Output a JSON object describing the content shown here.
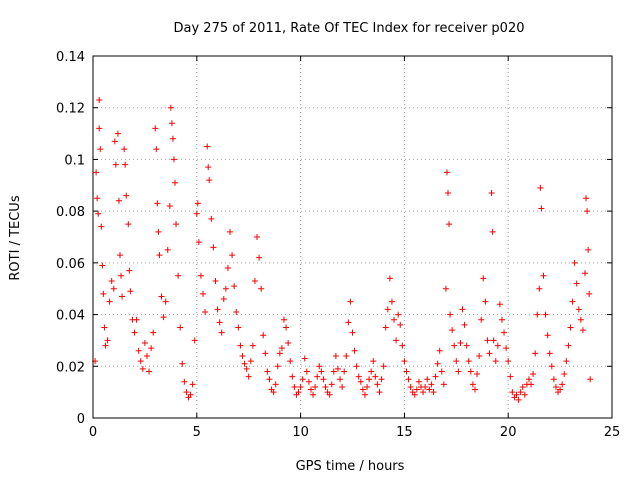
{
  "chart_data": {
    "type": "scatter",
    "title": "Day 275 of 2011, Rate Of TEC Index for receiver p020",
    "xlabel": "GPS time / hours",
    "ylabel": "ROTI / TECUs",
    "xlim": [
      0,
      25
    ],
    "ylim": [
      0,
      0.14
    ],
    "xticks": [
      "0",
      "5",
      "10",
      "15",
      "20",
      "25"
    ],
    "yticks": [
      "0",
      "0.02",
      "0.04",
      "0.06",
      "0.08",
      "0.1",
      "0.12",
      "0.14"
    ],
    "grid": true,
    "marker": "+",
    "color": "#ff0000",
    "series": [
      {
        "points": [
          [
            0.1,
            0.022
          ],
          [
            0.15,
            0.095
          ],
          [
            0.2,
            0.085
          ],
          [
            0.25,
            0.079
          ],
          [
            0.3,
            0.112
          ],
          [
            0.3,
            0.123
          ],
          [
            0.35,
            0.104
          ],
          [
            0.4,
            0.074
          ],
          [
            0.45,
            0.059
          ],
          [
            0.5,
            0.048
          ],
          [
            0.55,
            0.035
          ],
          [
            0.6,
            0.028
          ],
          [
            0.7,
            0.03
          ],
          [
            0.8,
            0.045
          ],
          [
            0.9,
            0.053
          ],
          [
            1.0,
            0.05
          ],
          [
            1.05,
            0.107
          ],
          [
            1.1,
            0.098
          ],
          [
            1.2,
            0.11
          ],
          [
            1.25,
            0.084
          ],
          [
            1.3,
            0.063
          ],
          [
            1.35,
            0.055
          ],
          [
            1.4,
            0.047
          ],
          [
            1.5,
            0.104
          ],
          [
            1.55,
            0.098
          ],
          [
            1.6,
            0.086
          ],
          [
            1.7,
            0.075
          ],
          [
            1.75,
            0.057
          ],
          [
            1.8,
            0.049
          ],
          [
            1.9,
            0.038
          ],
          [
            2.0,
            0.033
          ],
          [
            2.1,
            0.038
          ],
          [
            2.2,
            0.026
          ],
          [
            2.3,
            0.022
          ],
          [
            2.4,
            0.019
          ],
          [
            2.5,
            0.029
          ],
          [
            2.6,
            0.024
          ],
          [
            2.7,
            0.018
          ],
          [
            2.8,
            0.027
          ],
          [
            2.9,
            0.033
          ],
          [
            3.0,
            0.112
          ],
          [
            3.05,
            0.104
          ],
          [
            3.1,
            0.083
          ],
          [
            3.15,
            0.072
          ],
          [
            3.2,
            0.063
          ],
          [
            3.3,
            0.047
          ],
          [
            3.4,
            0.039
          ],
          [
            3.5,
            0.045
          ],
          [
            3.6,
            0.065
          ],
          [
            3.7,
            0.082
          ],
          [
            3.75,
            0.12
          ],
          [
            3.8,
            0.114
          ],
          [
            3.85,
            0.108
          ],
          [
            3.9,
            0.1
          ],
          [
            3.95,
            0.091
          ],
          [
            4.0,
            0.075
          ],
          [
            4.1,
            0.055
          ],
          [
            4.2,
            0.035
          ],
          [
            4.3,
            0.021
          ],
          [
            4.4,
            0.014
          ],
          [
            4.5,
            0.01
          ],
          [
            4.6,
            0.008
          ],
          [
            4.7,
            0.009
          ],
          [
            4.8,
            0.013
          ],
          [
            4.9,
            0.03
          ],
          [
            5.0,
            0.079
          ],
          [
            5.05,
            0.083
          ],
          [
            5.1,
            0.068
          ],
          [
            5.2,
            0.055
          ],
          [
            5.3,
            0.048
          ],
          [
            5.4,
            0.041
          ],
          [
            5.5,
            0.105
          ],
          [
            5.55,
            0.097
          ],
          [
            5.6,
            0.092
          ],
          [
            5.7,
            0.077
          ],
          [
            5.8,
            0.066
          ],
          [
            5.9,
            0.053
          ],
          [
            6.0,
            0.042
          ],
          [
            6.1,
            0.037
          ],
          [
            6.2,
            0.033
          ],
          [
            6.3,
            0.046
          ],
          [
            6.4,
            0.05
          ],
          [
            6.5,
            0.058
          ],
          [
            6.6,
            0.072
          ],
          [
            6.7,
            0.063
          ],
          [
            6.8,
            0.051
          ],
          [
            6.9,
            0.041
          ],
          [
            7.0,
            0.035
          ],
          [
            7.1,
            0.028
          ],
          [
            7.2,
            0.024
          ],
          [
            7.3,
            0.021
          ],
          [
            7.4,
            0.019
          ],
          [
            7.5,
            0.016
          ],
          [
            7.6,
            0.022
          ],
          [
            7.7,
            0.028
          ],
          [
            7.8,
            0.053
          ],
          [
            7.9,
            0.07
          ],
          [
            8.0,
            0.062
          ],
          [
            8.1,
            0.05
          ],
          [
            8.2,
            0.032
          ],
          [
            8.3,
            0.025
          ],
          [
            8.4,
            0.018
          ],
          [
            8.5,
            0.015
          ],
          [
            8.6,
            0.011
          ],
          [
            8.7,
            0.01
          ],
          [
            8.8,
            0.013
          ],
          [
            8.9,
            0.02
          ],
          [
            9.0,
            0.025
          ],
          [
            9.1,
            0.027
          ],
          [
            9.2,
            0.038
          ],
          [
            9.3,
            0.035
          ],
          [
            9.4,
            0.029
          ],
          [
            9.5,
            0.022
          ],
          [
            9.6,
            0.016
          ],
          [
            9.7,
            0.012
          ],
          [
            9.8,
            0.009
          ],
          [
            9.9,
            0.01
          ],
          [
            10.0,
            0.012
          ],
          [
            10.1,
            0.015
          ],
          [
            10.2,
            0.023
          ],
          [
            10.3,
            0.018
          ],
          [
            10.4,
            0.014
          ],
          [
            10.5,
            0.011
          ],
          [
            10.6,
            0.009
          ],
          [
            10.7,
            0.012
          ],
          [
            10.8,
            0.016
          ],
          [
            10.9,
            0.02
          ],
          [
            11.0,
            0.018
          ],
          [
            11.1,
            0.015
          ],
          [
            11.2,
            0.012
          ],
          [
            11.3,
            0.01
          ],
          [
            11.4,
            0.009
          ],
          [
            11.5,
            0.013
          ],
          [
            11.6,
            0.018
          ],
          [
            11.7,
            0.024
          ],
          [
            11.8,
            0.019
          ],
          [
            11.9,
            0.015
          ],
          [
            12.0,
            0.012
          ],
          [
            12.1,
            0.018
          ],
          [
            12.2,
            0.024
          ],
          [
            12.3,
            0.037
          ],
          [
            12.4,
            0.045
          ],
          [
            12.5,
            0.033
          ],
          [
            12.6,
            0.026
          ],
          [
            12.7,
            0.02
          ],
          [
            12.8,
            0.016
          ],
          [
            12.9,
            0.014
          ],
          [
            13.0,
            0.011
          ],
          [
            13.1,
            0.009
          ],
          [
            13.2,
            0.012
          ],
          [
            13.3,
            0.015
          ],
          [
            13.4,
            0.018
          ],
          [
            13.5,
            0.022
          ],
          [
            13.6,
            0.016
          ],
          [
            13.7,
            0.013
          ],
          [
            13.8,
            0.01
          ],
          [
            13.9,
            0.015
          ],
          [
            14.0,
            0.02
          ],
          [
            14.1,
            0.035
          ],
          [
            14.2,
            0.042
          ],
          [
            14.3,
            0.054
          ],
          [
            14.4,
            0.045
          ],
          [
            14.5,
            0.038
          ],
          [
            14.6,
            0.03
          ],
          [
            14.7,
            0.04
          ],
          [
            14.8,
            0.036
          ],
          [
            14.9,
            0.028
          ],
          [
            15.0,
            0.022
          ],
          [
            15.1,
            0.018
          ],
          [
            15.2,
            0.015
          ],
          [
            15.3,
            0.012
          ],
          [
            15.4,
            0.01
          ],
          [
            15.5,
            0.009
          ],
          [
            15.6,
            0.011
          ],
          [
            15.7,
            0.014
          ],
          [
            15.8,
            0.012
          ],
          [
            15.9,
            0.01
          ],
          [
            16.0,
            0.012
          ],
          [
            16.1,
            0.015
          ],
          [
            16.2,
            0.011
          ],
          [
            16.3,
            0.013
          ],
          [
            16.4,
            0.01
          ],
          [
            16.5,
            0.016
          ],
          [
            16.6,
            0.021
          ],
          [
            16.7,
            0.026
          ],
          [
            16.8,
            0.018
          ],
          [
            16.9,
            0.013
          ],
          [
            17.0,
            0.05
          ],
          [
            17.05,
            0.095
          ],
          [
            17.1,
            0.087
          ],
          [
            17.15,
            0.075
          ],
          [
            17.2,
            0.04
          ],
          [
            17.3,
            0.034
          ],
          [
            17.4,
            0.028
          ],
          [
            17.5,
            0.022
          ],
          [
            17.6,
            0.018
          ],
          [
            17.7,
            0.029
          ],
          [
            17.8,
            0.042
          ],
          [
            17.9,
            0.036
          ],
          [
            18.0,
            0.028
          ],
          [
            18.1,
            0.022
          ],
          [
            18.2,
            0.018
          ],
          [
            18.3,
            0.013
          ],
          [
            18.4,
            0.011
          ],
          [
            18.5,
            0.017
          ],
          [
            18.6,
            0.024
          ],
          [
            18.7,
            0.038
          ],
          [
            18.8,
            0.054
          ],
          [
            18.9,
            0.045
          ],
          [
            19.0,
            0.03
          ],
          [
            19.1,
            0.025
          ],
          [
            19.2,
            0.087
          ],
          [
            19.25,
            0.072
          ],
          [
            19.3,
            0.03
          ],
          [
            19.4,
            0.022
          ],
          [
            19.5,
            0.028
          ],
          [
            19.6,
            0.044
          ],
          [
            19.7,
            0.038
          ],
          [
            19.8,
            0.033
          ],
          [
            19.9,
            0.027
          ],
          [
            20.0,
            0.022
          ],
          [
            20.1,
            0.016
          ],
          [
            20.2,
            0.01
          ],
          [
            20.3,
            0.008
          ],
          [
            20.4,
            0.009
          ],
          [
            20.5,
            0.007
          ],
          [
            20.6,
            0.01
          ],
          [
            20.7,
            0.012
          ],
          [
            20.8,
            0.009
          ],
          [
            20.9,
            0.013
          ],
          [
            21.0,
            0.015
          ],
          [
            21.1,
            0.013
          ],
          [
            21.2,
            0.017
          ],
          [
            21.3,
            0.025
          ],
          [
            21.4,
            0.04
          ],
          [
            21.5,
            0.05
          ],
          [
            21.55,
            0.089
          ],
          [
            21.6,
            0.081
          ],
          [
            21.7,
            0.055
          ],
          [
            21.8,
            0.04
          ],
          [
            21.9,
            0.032
          ],
          [
            22.0,
            0.025
          ],
          [
            22.1,
            0.02
          ],
          [
            22.2,
            0.015
          ],
          [
            22.3,
            0.012
          ],
          [
            22.4,
            0.01
          ],
          [
            22.5,
            0.011
          ],
          [
            22.6,
            0.013
          ],
          [
            22.7,
            0.017
          ],
          [
            22.8,
            0.022
          ],
          [
            22.9,
            0.028
          ],
          [
            23.0,
            0.035
          ],
          [
            23.1,
            0.045
          ],
          [
            23.2,
            0.06
          ],
          [
            23.3,
            0.052
          ],
          [
            23.4,
            0.042
          ],
          [
            23.5,
            0.038
          ],
          [
            23.6,
            0.034
          ],
          [
            23.7,
            0.056
          ],
          [
            23.75,
            0.085
          ],
          [
            23.8,
            0.08
          ],
          [
            23.85,
            0.065
          ],
          [
            23.9,
            0.048
          ],
          [
            23.95,
            0.015
          ]
        ]
      }
    ]
  }
}
